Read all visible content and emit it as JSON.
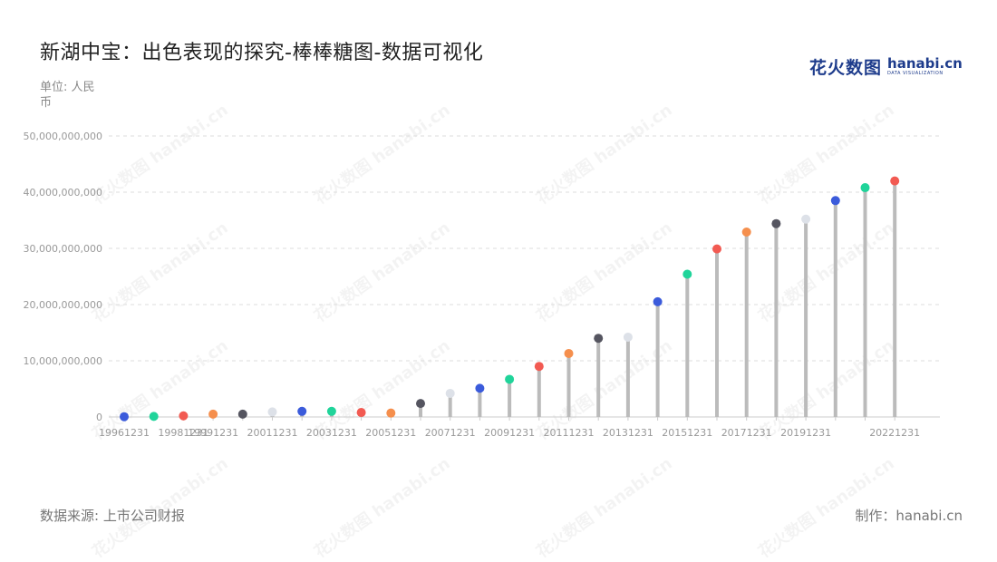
{
  "title": "新湖中宝：出色表现的探究-棒棒糖图-数据可视化",
  "unit_label": "单位: 人民币",
  "logo": {
    "cn": "花火数图",
    "en": "hanabi.cn",
    "sub": "DATA VISUALIZATION"
  },
  "source": "数据来源: 上市公司财报",
  "maker": "制作：hanabi.cn",
  "watermark": "花火数图 hanabi.cn",
  "chart_data": {
    "type": "lollipop",
    "x": [
      "19961231",
      "19971231",
      "19981231",
      "19991231",
      "20001231",
      "20011231",
      "20021231",
      "20031231",
      "20041231",
      "20051231",
      "20061231",
      "20071231",
      "20081231",
      "20091231",
      "20101231",
      "20111231",
      "20121231",
      "20131231",
      "20141231",
      "20151231",
      "20161231",
      "20171231",
      "20181231",
      "20191231",
      "20201231",
      "20211231",
      "20221231"
    ],
    "x_tick_labels": [
      "19961231",
      "19981231",
      "19991231",
      "20011231",
      "20031231",
      "20051231",
      "20071231",
      "20091231",
      "20111231",
      "20131231",
      "20151231",
      "20171231",
      "20191231",
      "20221231"
    ],
    "values": [
      50000000,
      100000000,
      200000000,
      500000000,
      500000000,
      900000000,
      1000000000,
      1000000000,
      800000000,
      700000000,
      2400000000,
      4200000000,
      5100000000,
      6700000000,
      9000000000,
      11300000000,
      14000000000,
      14200000000,
      20500000000,
      25400000000,
      29900000000,
      32900000000,
      34400000000,
      35200000000,
      38500000000,
      40800000000,
      42000000000
    ],
    "y_ticks": [
      "0",
      "10,000,000,000",
      "20,000,000,000",
      "30,000,000,000",
      "40,000,000,000",
      "50,000,000,000"
    ],
    "ylim": [
      0,
      50000000000
    ],
    "grid": true,
    "stem_color": "#bbbbbb",
    "point_colors": [
      "#3b5bdb",
      "#20d49a",
      "#f25a52",
      "#f58f4d",
      "#555560",
      "#dde1e8"
    ]
  }
}
